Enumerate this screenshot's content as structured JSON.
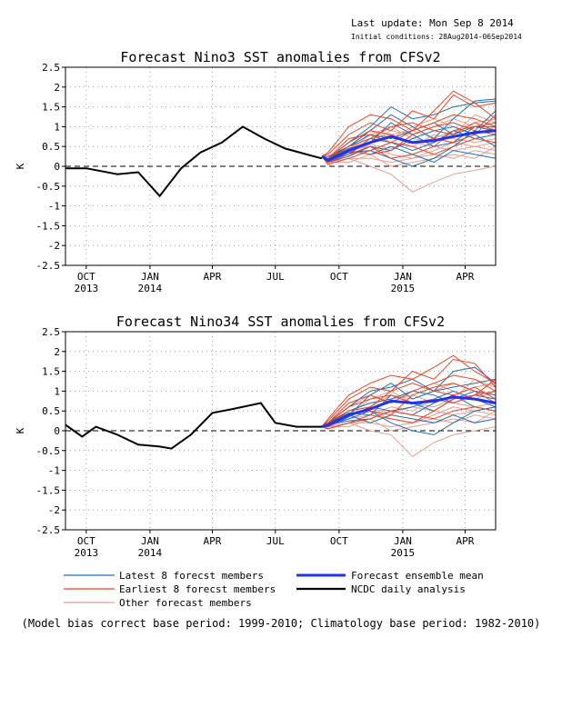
{
  "header": {
    "last_update": "Last update: Mon Sep 8 2014",
    "initial_conditions": "Initial conditions: 28Aug2014-06Sep2014"
  },
  "legend": {
    "latest": "Latest 8 forecst members",
    "earliest": "Earliest 8 forecst members",
    "other": "Other forecast members",
    "mean": "Forecast ensemble mean",
    "analysis": "NCDC daily analysis"
  },
  "footnote": "(Model bias correct base period: 1999-2010; Climatology base period: 1982-2010)",
  "colors": {
    "latest": "#1f6fb4",
    "earliest": "#ee4422",
    "other": "#e4a090",
    "mean": "#2233ee",
    "analysis": "#000000"
  },
  "chart_data": [
    {
      "type": "line",
      "title": "Forecast Nino3 SST anomalies from CFSv2",
      "ylabel": "K",
      "ylim": [
        -2.5,
        2.5
      ],
      "xlim": [
        "2013-09-01",
        "2015-05-15"
      ],
      "yticks": [
        "2.5",
        "2",
        "1.5",
        "1",
        "0.5",
        "0",
        "-0.5",
        "-1",
        "-1.5",
        "-2",
        "-2.5"
      ],
      "xticks": [
        {
          "month": "OCT",
          "year": "2013"
        },
        {
          "month": "JAN",
          "year": "2014"
        },
        {
          "month": "APR",
          "year": ""
        },
        {
          "month": "JUL",
          "year": ""
        },
        {
          "month": "OCT",
          "year": ""
        },
        {
          "month": "JAN",
          "year": "2015"
        },
        {
          "month": "APR",
          "year": ""
        }
      ],
      "grid": true,
      "analysis": {
        "x": [
          "2013-09-01",
          "2013-10-01",
          "2013-11-15",
          "2013-12-15",
          "2014-01-15",
          "2014-02-15",
          "2014-03-15",
          "2014-04-15",
          "2014-05-15",
          "2014-06-15",
          "2014-07-15",
          "2014-08-15",
          "2014-09-06"
        ],
        "values": [
          -0.05,
          -0.05,
          -0.2,
          -0.15,
          -0.75,
          -0.05,
          0.35,
          0.6,
          1.0,
          0.7,
          0.45,
          0.3,
          0.2
        ]
      },
      "forecast_x": [
        "2014-09-06",
        "2014-09-15",
        "2014-10-15",
        "2014-11-15",
        "2014-12-15",
        "2015-01-15",
        "2015-02-15",
        "2015-03-15",
        "2015-04-15",
        "2015-05-15"
      ],
      "ensemble_mean": [
        0.25,
        0.15,
        0.4,
        0.6,
        0.75,
        0.6,
        0.65,
        0.75,
        0.85,
        0.9
      ],
      "latest_members": [
        [
          0.25,
          0.2,
          0.6,
          1.0,
          1.5,
          1.2,
          1.3,
          1.5,
          1.6,
          1.65
        ],
        [
          0.25,
          0.25,
          0.5,
          0.9,
          1.3,
          1.0,
          0.7,
          1.2,
          1.65,
          1.7
        ],
        [
          0.25,
          0.1,
          0.35,
          0.4,
          0.2,
          0.0,
          0.2,
          0.5,
          0.9,
          1.4
        ],
        [
          0.25,
          0.2,
          0.5,
          0.8,
          0.7,
          0.9,
          1.1,
          0.8,
          1.0,
          0.9
        ],
        [
          0.25,
          0.15,
          0.3,
          0.7,
          0.6,
          0.4,
          0.6,
          0.9,
          0.7,
          0.8
        ],
        [
          0.25,
          0.2,
          0.45,
          0.6,
          1.1,
          0.8,
          0.5,
          0.6,
          1.0,
          1.0
        ],
        [
          0.25,
          0.1,
          0.25,
          0.5,
          0.4,
          0.7,
          0.9,
          1.0,
          0.8,
          0.5
        ],
        [
          0.25,
          0.15,
          0.4,
          0.3,
          0.5,
          0.3,
          0.1,
          0.4,
          0.3,
          0.2
        ]
      ],
      "earliest_members": [
        [
          0.25,
          0.35,
          1.0,
          1.3,
          1.2,
          0.9,
          1.4,
          1.9,
          1.6,
          1.2
        ],
        [
          0.25,
          0.3,
          0.8,
          1.1,
          0.9,
          1.4,
          1.2,
          1.8,
          1.5,
          1.6
        ],
        [
          0.25,
          0.1,
          0.3,
          0.5,
          0.2,
          0.3,
          0.5,
          0.9,
          1.0,
          1.1
        ],
        [
          0.25,
          0.2,
          0.6,
          0.9,
          0.8,
          0.6,
          0.7,
          0.6,
          0.8,
          1.3
        ],
        [
          0.25,
          0.15,
          0.5,
          0.7,
          1.0,
          1.1,
          0.9,
          0.8,
          1.1,
          0.9
        ],
        [
          0.25,
          0.05,
          0.2,
          0.4,
          0.6,
          0.5,
          0.3,
          0.5,
          0.7,
          0.6
        ],
        [
          0.25,
          0.2,
          0.7,
          0.8,
          0.6,
          0.9,
          1.1,
          1.3,
          1.2,
          1.0
        ],
        [
          0.25,
          0.1,
          0.4,
          0.3,
          0.4,
          0.8,
          1.0,
          1.1,
          0.9,
          0.8
        ]
      ],
      "other_members": [
        [
          0.25,
          0.1,
          0.2,
          0.0,
          -0.2,
          -0.65,
          -0.4,
          -0.2,
          -0.1,
          0.0
        ],
        [
          0.25,
          0.2,
          0.4,
          0.5,
          0.3,
          0.2,
          0.4,
          0.6,
          0.5,
          0.4
        ],
        [
          0.25,
          0.15,
          0.5,
          0.7,
          0.8,
          0.9,
          0.7,
          0.9,
          1.1,
          1.2
        ],
        [
          0.25,
          0.1,
          0.3,
          0.4,
          0.6,
          0.5,
          0.8,
          0.7,
          0.6,
          0.7
        ],
        [
          0.25,
          0.2,
          0.6,
          0.9,
          0.7,
          1.0,
          1.2,
          1.0,
          0.8,
          1.0
        ],
        [
          0.25,
          0.05,
          0.2,
          0.2,
          0.1,
          0.2,
          0.3,
          0.2,
          0.4,
          0.3
        ],
        [
          0.25,
          0.15,
          0.4,
          0.8,
          1.0,
          0.7,
          0.6,
          0.8,
          1.3,
          1.1
        ],
        [
          0.25,
          0.1,
          0.35,
          0.55,
          0.45,
          0.6,
          0.5,
          0.4,
          0.5,
          0.6
        ],
        [
          0.25,
          0.2,
          0.5,
          0.6,
          0.9,
          0.8,
          1.0,
          1.2,
          1.0,
          0.9
        ],
        [
          0.25,
          0.1,
          0.1,
          0.3,
          0.0,
          0.1,
          0.2,
          0.3,
          0.2,
          0.5
        ]
      ]
    },
    {
      "type": "line",
      "title": "Forecast Nino34 SST anomalies from CFSv2",
      "ylabel": "K",
      "ylim": [
        -2.5,
        2.5
      ],
      "xlim": [
        "2013-09-01",
        "2015-05-15"
      ],
      "yticks": [
        "2.5",
        "2",
        "1.5",
        "1",
        "0.5",
        "0",
        "-0.5",
        "-1",
        "-1.5",
        "-2",
        "-2.5"
      ],
      "xticks": [
        {
          "month": "OCT",
          "year": "2013"
        },
        {
          "month": "JAN",
          "year": "2014"
        },
        {
          "month": "APR",
          "year": ""
        },
        {
          "month": "JUL",
          "year": ""
        },
        {
          "month": "OCT",
          "year": ""
        },
        {
          "month": "JAN",
          "year": "2015"
        },
        {
          "month": "APR",
          "year": ""
        }
      ],
      "grid": true,
      "analysis": {
        "x": [
          "2013-09-01",
          "2013-09-25",
          "2013-10-15",
          "2013-11-15",
          "2013-12-15",
          "2014-01-15",
          "2014-02-01",
          "2014-03-01",
          "2014-04-01",
          "2014-05-01",
          "2014-06-10",
          "2014-07-01",
          "2014-08-01",
          "2014-09-06"
        ],
        "values": [
          0.15,
          -0.15,
          0.1,
          -0.1,
          -0.35,
          -0.4,
          -0.45,
          -0.1,
          0.45,
          0.55,
          0.7,
          0.2,
          0.1,
          0.1
        ]
      },
      "forecast_x": [
        "2014-09-06",
        "2014-09-15",
        "2014-10-15",
        "2014-11-15",
        "2014-12-15",
        "2015-01-15",
        "2015-02-15",
        "2015-03-15",
        "2015-04-15",
        "2015-05-15"
      ],
      "ensemble_mean": [
        0.1,
        0.15,
        0.4,
        0.55,
        0.75,
        0.7,
        0.75,
        0.85,
        0.8,
        0.7
      ],
      "latest_members": [
        [
          0.1,
          0.2,
          0.6,
          1.0,
          1.1,
          1.3,
          1.0,
          1.5,
          1.6,
          1.2
        ],
        [
          0.1,
          0.1,
          0.4,
          0.9,
          1.2,
          0.8,
          1.0,
          1.1,
          1.2,
          1.3
        ],
        [
          0.1,
          0.15,
          0.3,
          0.5,
          0.2,
          0.0,
          -0.1,
          0.2,
          0.5,
          0.6
        ],
        [
          0.1,
          0.2,
          0.5,
          0.7,
          0.8,
          1.0,
          0.9,
          0.7,
          0.9,
          0.8
        ],
        [
          0.1,
          0.1,
          0.35,
          0.6,
          0.5,
          0.4,
          0.7,
          0.9,
          0.6,
          0.5
        ],
        [
          0.1,
          0.2,
          0.45,
          0.4,
          0.9,
          0.7,
          0.5,
          0.8,
          1.0,
          0.9
        ],
        [
          0.1,
          0.15,
          0.25,
          0.3,
          0.5,
          0.6,
          0.8,
          1.0,
          0.8,
          0.6
        ],
        [
          0.1,
          0.1,
          0.4,
          0.2,
          0.4,
          0.3,
          0.2,
          0.4,
          0.2,
          0.3
        ]
      ],
      "earliest_members": [
        [
          0.1,
          0.3,
          0.9,
          1.2,
          1.4,
          1.3,
          1.6,
          1.9,
          1.5,
          1.2
        ],
        [
          0.1,
          0.25,
          0.8,
          1.1,
          1.0,
          1.5,
          1.3,
          1.8,
          1.7,
          1.1
        ],
        [
          0.1,
          0.05,
          0.2,
          0.4,
          0.3,
          0.2,
          0.5,
          0.8,
          0.9,
          1.0
        ],
        [
          0.1,
          0.2,
          0.6,
          0.8,
          0.9,
          0.7,
          0.8,
          0.7,
          0.9,
          1.3
        ],
        [
          0.1,
          0.15,
          0.5,
          0.6,
          1.0,
          1.2,
          1.0,
          0.9,
          1.1,
          0.8
        ],
        [
          0.1,
          0.05,
          0.2,
          0.3,
          0.5,
          0.4,
          0.3,
          0.5,
          0.6,
          0.5
        ],
        [
          0.1,
          0.2,
          0.7,
          0.9,
          0.7,
          1.0,
          1.2,
          1.4,
          1.3,
          1.0
        ],
        [
          0.1,
          0.1,
          0.4,
          0.5,
          0.4,
          0.9,
          1.1,
          1.2,
          1.0,
          0.7
        ]
      ],
      "other_members": [
        [
          0.1,
          0.1,
          0.2,
          0.0,
          -0.1,
          -0.65,
          -0.3,
          -0.1,
          0.0,
          0.1
        ],
        [
          0.1,
          0.15,
          0.4,
          0.5,
          0.3,
          0.2,
          0.4,
          0.6,
          0.5,
          0.4
        ],
        [
          0.1,
          0.2,
          0.5,
          0.7,
          0.8,
          0.9,
          0.7,
          0.9,
          1.1,
          1.2
        ],
        [
          0.1,
          0.1,
          0.3,
          0.4,
          0.6,
          0.5,
          0.8,
          0.7,
          0.6,
          0.7
        ],
        [
          0.1,
          0.2,
          0.6,
          0.9,
          0.7,
          1.0,
          1.2,
          1.0,
          0.8,
          1.0
        ],
        [
          0.1,
          0.05,
          0.2,
          0.2,
          0.1,
          0.2,
          0.3,
          0.2,
          0.4,
          0.3
        ],
        [
          0.1,
          0.15,
          0.4,
          0.8,
          1.0,
          0.7,
          0.6,
          0.8,
          1.3,
          1.1
        ],
        [
          0.1,
          0.1,
          0.35,
          0.55,
          0.45,
          0.6,
          0.5,
          0.4,
          0.5,
          0.6
        ],
        [
          0.1,
          0.2,
          0.5,
          0.6,
          0.9,
          0.8,
          1.0,
          1.2,
          1.0,
          0.9
        ],
        [
          0.1,
          0.1,
          0.1,
          0.3,
          0.0,
          0.1,
          0.2,
          0.3,
          0.2,
          0.5
        ]
      ]
    }
  ]
}
